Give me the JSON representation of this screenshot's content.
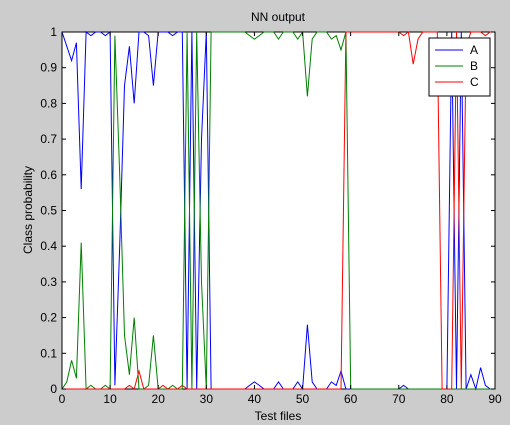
{
  "window": {
    "background": "#cccccc"
  },
  "chart_data": {
    "type": "line",
    "title": "NN output",
    "xlabel": "Test files",
    "ylabel": "Class probability",
    "xlim": [
      0,
      90
    ],
    "ylim": [
      0,
      1
    ],
    "xticks": [
      0,
      10,
      20,
      30,
      40,
      50,
      60,
      70,
      80,
      90
    ],
    "yticks": [
      0,
      0.1,
      0.2,
      0.3,
      0.4,
      0.5,
      0.6,
      0.7,
      0.8,
      0.9,
      1
    ],
    "xtick_labels": [
      "0",
      "10",
      "20",
      "30",
      "40",
      "50",
      "60",
      "70",
      "80",
      "90"
    ],
    "ytick_labels": [
      "0",
      "0.1",
      "0.2",
      "0.3",
      "0.4",
      "0.5",
      "0.6",
      "0.7",
      "0.8",
      "0.9",
      "1"
    ],
    "grid": false,
    "legend": {
      "position": "top-right"
    },
    "x": [
      0,
      1,
      2,
      3,
      4,
      5,
      6,
      7,
      8,
      9,
      10,
      11,
      12,
      13,
      14,
      15,
      16,
      17,
      18,
      19,
      20,
      21,
      22,
      23,
      24,
      25,
      26,
      27,
      28,
      29,
      30,
      31,
      32,
      33,
      34,
      35,
      36,
      37,
      38,
      39,
      40,
      41,
      42,
      43,
      44,
      45,
      46,
      47,
      48,
      49,
      50,
      51,
      52,
      53,
      54,
      55,
      56,
      57,
      58,
      59,
      60,
      61,
      62,
      63,
      64,
      65,
      66,
      67,
      68,
      69,
      70,
      71,
      72,
      73,
      74,
      75,
      76,
      77,
      78,
      79,
      80,
      81,
      82,
      83,
      84,
      85,
      86,
      87,
      88,
      89,
      90
    ],
    "series": [
      {
        "name": "A",
        "color": "#0000ff",
        "values": [
          1,
          0.96,
          0.92,
          0.97,
          0.56,
          1,
          0.99,
          1,
          1,
          0.99,
          1,
          0.01,
          0.4,
          0.85,
          0.96,
          0.8,
          1,
          1,
          0.99,
          0.85,
          1,
          1,
          1,
          0.99,
          1,
          1,
          0,
          1,
          0,
          0.7,
          1,
          0,
          0,
          0,
          0,
          0,
          0,
          0,
          0,
          0.01,
          0.02,
          0.01,
          0,
          0,
          0,
          0.02,
          0,
          0,
          0,
          0.02,
          0,
          0.18,
          0.02,
          0,
          0,
          0,
          0.02,
          0.01,
          0.05,
          0,
          0,
          0,
          0,
          0,
          0,
          0,
          0,
          0,
          0,
          0,
          0,
          0.01,
          0,
          0,
          0,
          0,
          0,
          0,
          0,
          0,
          0,
          1,
          0,
          1,
          0,
          0.04,
          0,
          0.06,
          0.01,
          0,
          0
        ]
      },
      {
        "name": "B",
        "color": "#008000",
        "values": [
          0,
          0.02,
          0.08,
          0.03,
          0.41,
          0,
          0.01,
          0,
          0,
          0.01,
          0,
          0.99,
          0.6,
          0.15,
          0.04,
          0.2,
          0,
          0,
          0.01,
          0.15,
          0,
          0,
          0,
          0.01,
          0,
          0,
          1,
          0,
          1,
          0.3,
          0,
          1,
          1,
          1,
          1,
          1,
          1,
          1,
          1,
          0.99,
          0.98,
          0.99,
          1,
          1,
          1,
          0.98,
          1,
          1,
          1,
          0.98,
          1,
          0.82,
          0.98,
          1,
          1,
          1,
          0.98,
          0.99,
          0.95,
          1,
          0,
          0,
          0,
          0,
          0,
          0,
          0,
          0,
          0,
          0,
          0,
          0,
          0,
          0,
          0,
          0,
          0,
          0,
          0,
          0,
          0,
          0,
          0,
          0,
          0,
          0,
          0,
          0,
          0,
          0,
          0
        ]
      },
      {
        "name": "C",
        "color": "#ff0000",
        "values": [
          0,
          0,
          0,
          0,
          0,
          0,
          0,
          0,
          0,
          0,
          0,
          0,
          0,
          0,
          0.01,
          0,
          0.05,
          0,
          0,
          0,
          0,
          0.01,
          0,
          0,
          0,
          0.01,
          0,
          0,
          0,
          0,
          0,
          0,
          0,
          0,
          0,
          0,
          0,
          0,
          0,
          0,
          0,
          0,
          0,
          0,
          0,
          0,
          0,
          0,
          0,
          0,
          0,
          0,
          0,
          0,
          0,
          0,
          0,
          0,
          0,
          1,
          1,
          1,
          1,
          1,
          1,
          1,
          1,
          1,
          1,
          1,
          1,
          0.99,
          1,
          0.91,
          0.98,
          1,
          1,
          1,
          1,
          0,
          0,
          0,
          1,
          0,
          0.96,
          1,
          1,
          1,
          0.99,
          1,
          1
        ]
      }
    ]
  }
}
